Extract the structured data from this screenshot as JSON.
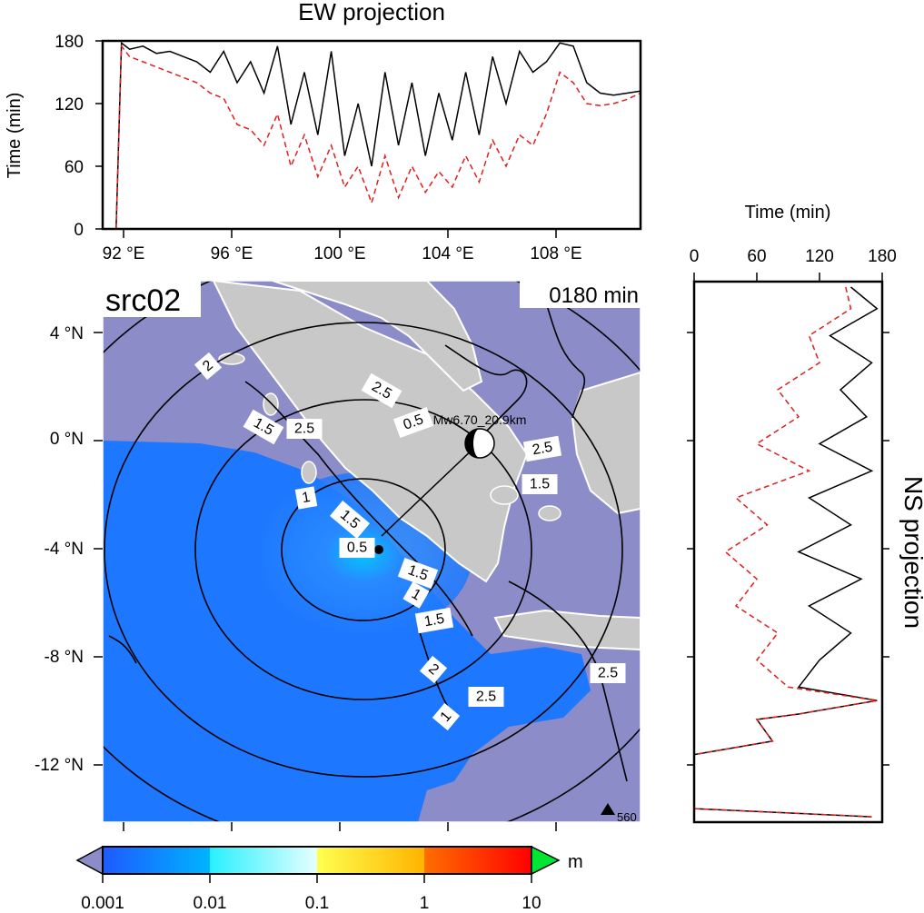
{
  "ew_panel": {
    "title": "EW projection",
    "ylabel": "Time (min)",
    "yticks": [
      "0",
      "60",
      "120",
      "180"
    ],
    "xticks": [
      "92 °E",
      "96 °E",
      "100 °E",
      "104 °E",
      "108 °E"
    ]
  },
  "ns_panel": {
    "title": "NS projection",
    "xlabel": "Time (min)",
    "xticks": [
      "0",
      "60",
      "120",
      "180"
    ]
  },
  "map": {
    "source_label": "src02",
    "time_label": "0180 min",
    "event_label": "Mw6.70_20.9km",
    "station_label": "560",
    "yticks": [
      "4 °N",
      "0 °N",
      "-4 °N",
      "-8 °N",
      "-12 °N"
    ],
    "contour_labels": [
      "2",
      "1.5",
      "2.5",
      "1",
      "1.5",
      "0.5",
      "1.5",
      "1",
      "1.5",
      "2",
      "1",
      "2.5",
      "0.5",
      "2.5",
      "1.5",
      "2.5",
      "2.5"
    ],
    "colors": {
      "ocean": "#8c8cc8",
      "land": "#c8c8c8",
      "wave": "#1e78ff",
      "coast": "#ffffff"
    }
  },
  "colorbar": {
    "unit": "m",
    "ticks": [
      "0.001",
      "0.01",
      "0.1",
      "1",
      "10"
    ],
    "colors": [
      "#1e5aff",
      "#00b4ff",
      "#3cffff",
      "#ffff50",
      "#ffb400",
      "#ff5a00",
      "#ff0000",
      "#00e632",
      "#8c8cc8"
    ]
  },
  "chart_data": [
    {
      "type": "line",
      "title": "EW projection",
      "xlabel": "",
      "ylabel": "Time (min)",
      "xlim": [
        91,
        111
      ],
      "ylim": [
        0,
        180
      ],
      "series": [
        {
          "color": "#000000",
          "style": "solid",
          "x": [
            91.5,
            91.7,
            92.0,
            92.5,
            93.0,
            93.5,
            94.0,
            94.5,
            95.0,
            95.5,
            96.0,
            96.5,
            97.0,
            97.5,
            98.0,
            98.5,
            99.0,
            99.5,
            100.0,
            100.5,
            101.0,
            101.5,
            102.0,
            102.5,
            103.0,
            103.5,
            104.0,
            104.5,
            105.0,
            105.5,
            106.0,
            106.5,
            107.0,
            107.5,
            108.0,
            108.5,
            109.0,
            109.5,
            110.0,
            110.5,
            111.0
          ],
          "y": [
            0,
            178,
            172,
            175,
            168,
            170,
            165,
            160,
            150,
            170,
            140,
            160,
            130,
            175,
            100,
            150,
            90,
            170,
            70,
            120,
            60,
            150,
            80,
            140,
            70,
            130,
            85,
            150,
            90,
            165,
            120,
            170,
            150,
            160,
            178,
            175,
            140,
            130,
            128,
            130,
            132
          ]
        },
        {
          "color": "#e11e1e",
          "style": "dashed",
          "x": [
            91.5,
            91.7,
            92.0,
            92.5,
            93.0,
            93.5,
            94.0,
            94.5,
            95.0,
            95.5,
            96.0,
            96.5,
            97.0,
            97.5,
            98.0,
            98.5,
            99.0,
            99.5,
            100.0,
            100.5,
            101.0,
            101.5,
            102.0,
            102.5,
            103.0,
            103.5,
            104.0,
            104.5,
            105.0,
            105.5,
            106.0,
            106.5,
            107.0,
            107.5,
            108.0,
            108.5,
            109.0,
            109.5,
            110.0,
            110.5,
            111.0
          ],
          "y": [
            0,
            175,
            165,
            160,
            155,
            150,
            145,
            140,
            130,
            125,
            100,
            95,
            80,
            110,
            60,
            90,
            50,
            80,
            40,
            60,
            25,
            70,
            30,
            60,
            35,
            55,
            40,
            70,
            45,
            85,
            60,
            90,
            80,
            110,
            150,
            140,
            120,
            118,
            120,
            124,
            130
          ]
        }
      ]
    },
    {
      "type": "line",
      "title": "NS projection",
      "xlabel": "Time (min)",
      "ylabel": "",
      "xlim": [
        0,
        180
      ],
      "ylim": [
        -14,
        6
      ],
      "series": [
        {
          "color": "#000000",
          "style": "solid",
          "y": [
            5.8,
            5.0,
            4.0,
            3.0,
            2.0,
            1.0,
            0.0,
            -1.0,
            -2.0,
            -3.0,
            -4.0,
            -5.0,
            -6.0,
            -7.0,
            -8.0,
            -9.0,
            -9.5,
            -10.0,
            -10.2,
            -11.0,
            -11.5,
            -13.5,
            -13.8
          ],
          "x": [
            150,
            175,
            130,
            170,
            140,
            165,
            120,
            170,
            110,
            150,
            100,
            160,
            110,
            150,
            120,
            100,
            175,
            100,
            60,
            75,
            0,
            0,
            170
          ]
        },
        {
          "color": "#e11e1e",
          "style": "dashed",
          "y": [
            5.8,
            5.0,
            4.0,
            3.0,
            2.0,
            1.0,
            0.0,
            -1.0,
            -2.0,
            -3.0,
            -4.0,
            -5.0,
            -6.0,
            -7.0,
            -8.0,
            -9.0,
            -9.5,
            -10.0,
            -10.2,
            -11.0,
            -11.5,
            -13.5,
            -13.8
          ],
          "x": [
            145,
            150,
            110,
            120,
            80,
            100,
            60,
            110,
            40,
            70,
            30,
            60,
            40,
            80,
            60,
            90,
            175,
            100,
            60,
            75,
            0,
            0,
            170
          ]
        }
      ]
    }
  ]
}
